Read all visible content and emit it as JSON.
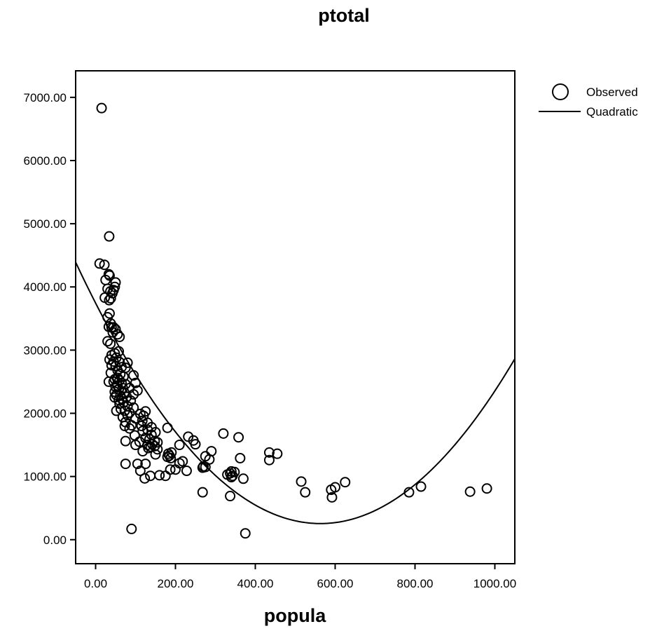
{
  "chart_data": {
    "type": "scatter",
    "title": "ptotal",
    "xlabel": "popula",
    "ylabel": "",
    "xlim": [
      -50,
      1050
    ],
    "ylim": [
      -380,
      7420
    ],
    "xticks": [
      0,
      200,
      400,
      600,
      800,
      1000
    ],
    "xtick_labels": [
      "0.00",
      "200.00",
      "400.00",
      "600.00",
      "800.00",
      "1000.00"
    ],
    "yticks": [
      0,
      1000,
      2000,
      3000,
      4000,
      5000,
      6000,
      7000
    ],
    "ytick_labels": [
      "0.00",
      "1000.00",
      "2000.00",
      "3000.00",
      "4000.00",
      "5000.00",
      "6000.00",
      "7000.00"
    ],
    "grid": false,
    "legend_position": "right",
    "series": [
      {
        "name": "Observed",
        "kind": "points",
        "points": [
          [
            15,
            6830
          ],
          [
            34,
            4800
          ],
          [
            10,
            4370
          ],
          [
            22,
            4350
          ],
          [
            33,
            4200
          ],
          [
            35,
            4180
          ],
          [
            50,
            4070
          ],
          [
            25,
            4110
          ],
          [
            48,
            4000
          ],
          [
            30,
            3970
          ],
          [
            45,
            3950
          ],
          [
            37,
            3930
          ],
          [
            42,
            3900
          ],
          [
            23,
            3830
          ],
          [
            38,
            3820
          ],
          [
            34,
            3790
          ],
          [
            35,
            3580
          ],
          [
            30,
            3520
          ],
          [
            38,
            3420
          ],
          [
            33,
            3370
          ],
          [
            40,
            3360
          ],
          [
            45,
            3360
          ],
          [
            50,
            3330
          ],
          [
            43,
            3280
          ],
          [
            55,
            3250
          ],
          [
            60,
            3210
          ],
          [
            30,
            3140
          ],
          [
            37,
            3100
          ],
          [
            58,
            2980
          ],
          [
            48,
            2950
          ],
          [
            40,
            2920
          ],
          [
            52,
            2880
          ],
          [
            35,
            2850
          ],
          [
            45,
            2820
          ],
          [
            60,
            2810
          ],
          [
            80,
            2800
          ],
          [
            40,
            2760
          ],
          [
            50,
            2750
          ],
          [
            65,
            2730
          ],
          [
            75,
            2720
          ],
          [
            55,
            2680
          ],
          [
            38,
            2640
          ],
          [
            62,
            2620
          ],
          [
            95,
            2600
          ],
          [
            70,
            2580
          ],
          [
            55,
            2560
          ],
          [
            48,
            2540
          ],
          [
            60,
            2520
          ],
          [
            33,
            2500
          ],
          [
            45,
            2500
          ],
          [
            65,
            2480
          ],
          [
            100,
            2480
          ],
          [
            75,
            2460
          ],
          [
            55,
            2440
          ],
          [
            50,
            2420
          ],
          [
            68,
            2400
          ],
          [
            85,
            2400
          ],
          [
            58,
            2380
          ],
          [
            105,
            2360
          ],
          [
            48,
            2340
          ],
          [
            72,
            2330
          ],
          [
            95,
            2300
          ],
          [
            52,
            2290
          ],
          [
            62,
            2280
          ],
          [
            78,
            2260
          ],
          [
            48,
            2250
          ],
          [
            66,
            2230
          ],
          [
            58,
            2210
          ],
          [
            88,
            2200
          ],
          [
            70,
            2170
          ],
          [
            60,
            2150
          ],
          [
            80,
            2110
          ],
          [
            95,
            2090
          ],
          [
            63,
            2070
          ],
          [
            52,
            2040
          ],
          [
            73,
            2040
          ],
          [
            125,
            2030
          ],
          [
            85,
            2010
          ],
          [
            112,
            1990
          ],
          [
            80,
            1970
          ],
          [
            120,
            1960
          ],
          [
            68,
            1940
          ],
          [
            100,
            1920
          ],
          [
            117,
            1880
          ],
          [
            75,
            1860
          ],
          [
            130,
            1850
          ],
          [
            90,
            1810
          ],
          [
            115,
            1800
          ],
          [
            73,
            1800
          ],
          [
            140,
            1780
          ],
          [
            180,
            1770
          ],
          [
            85,
            1760
          ],
          [
            130,
            1740
          ],
          [
            118,
            1720
          ],
          [
            150,
            1700
          ],
          [
            140,
            1660
          ],
          [
            98,
            1650
          ],
          [
            320,
            1680
          ],
          [
            232,
            1630
          ],
          [
            358,
            1620
          ],
          [
            125,
            1610
          ],
          [
            135,
            1590
          ],
          [
            245,
            1570
          ],
          [
            148,
            1560
          ],
          [
            75,
            1560
          ],
          [
            110,
            1550
          ],
          [
            155,
            1540
          ],
          [
            250,
            1510
          ],
          [
            142,
            1510
          ],
          [
            100,
            1500
          ],
          [
            130,
            1500
          ],
          [
            210,
            1500
          ],
          [
            148,
            1480
          ],
          [
            138,
            1470
          ],
          [
            132,
            1450
          ],
          [
            155,
            1430
          ],
          [
            118,
            1400
          ],
          [
            290,
            1400
          ],
          [
            190,
            1380
          ],
          [
            182,
            1360
          ],
          [
            435,
            1380
          ],
          [
            455,
            1360
          ],
          [
            150,
            1350
          ],
          [
            185,
            1330
          ],
          [
            275,
            1320
          ],
          [
            180,
            1310
          ],
          [
            188,
            1290
          ],
          [
            362,
            1290
          ],
          [
            285,
            1270
          ],
          [
            435,
            1260
          ],
          [
            218,
            1240
          ],
          [
            210,
            1210
          ],
          [
            75,
            1200
          ],
          [
            105,
            1200
          ],
          [
            125,
            1200
          ],
          [
            270,
            1160
          ],
          [
            275,
            1150
          ],
          [
            268,
            1140
          ],
          [
            340,
            1080
          ],
          [
            200,
            1110
          ],
          [
            187,
            1110
          ],
          [
            112,
            1090
          ],
          [
            228,
            1090
          ],
          [
            348,
            1070
          ],
          [
            337,
            1050
          ],
          [
            330,
            1030
          ],
          [
            343,
            1010
          ],
          [
            160,
            1020
          ],
          [
            175,
            1010
          ],
          [
            137,
            1010
          ],
          [
            340,
            990
          ],
          [
            123,
            970
          ],
          [
            370,
            965
          ],
          [
            515,
            920
          ],
          [
            625,
            910
          ],
          [
            600,
            830
          ],
          [
            815,
            840
          ],
          [
            590,
            790
          ],
          [
            980,
            810
          ],
          [
            785,
            750
          ],
          [
            938,
            760
          ],
          [
            525,
            750
          ],
          [
            268,
            750
          ],
          [
            337,
            690
          ],
          [
            592,
            670
          ],
          [
            90,
            170
          ],
          [
            375,
            100
          ]
        ]
      },
      {
        "name": "Quadratic",
        "kind": "curve",
        "coefficients": {
          "a": 0.011,
          "b": -12.39,
          "c": 3744
        }
      }
    ]
  }
}
